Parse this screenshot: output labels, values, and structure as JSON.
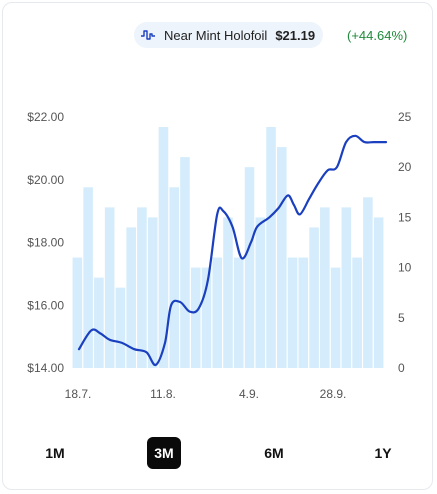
{
  "legend": {
    "series_name": "Near Mint Holofoil",
    "price": "$21.19",
    "change": "(+44.64%)",
    "icon": "line-chart-icon"
  },
  "ranges": [
    {
      "label": "1M",
      "active": false
    },
    {
      "label": "3M",
      "active": true
    },
    {
      "label": "6M",
      "active": false
    },
    {
      "label": "1Y",
      "active": false
    }
  ],
  "colors": {
    "line": "#1a3fbf",
    "bars": "#d4ecfb",
    "change_positive": "#1f8a3a"
  },
  "chart_data": {
    "type": "bar+line",
    "x_tick_labels": [
      "18.7.",
      "11.8.",
      "4.9.",
      "28.9."
    ],
    "y_left": {
      "ticks": [
        14,
        16,
        18,
        20,
        22
      ],
      "tick_labels": [
        "$14.00",
        "$16.00",
        "$18.00",
        "$20.00",
        "$22.00"
      ],
      "range": [
        14,
        22
      ]
    },
    "y_right": {
      "ticks": [
        0,
        5,
        10,
        15,
        20,
        25
      ],
      "tick_labels": [
        "0",
        "5",
        "10",
        "15",
        "20",
        "25"
      ],
      "range": [
        0,
        25
      ]
    },
    "bar_values": [
      11,
      18,
      9,
      16,
      8,
      14,
      16,
      15,
      24,
      18,
      21,
      10,
      10,
      11,
      15,
      11,
      20,
      15,
      24,
      22,
      11,
      11,
      14,
      16,
      10,
      16,
      11,
      17,
      15
    ],
    "line_points": [
      [
        0.0,
        14.6
      ],
      [
        0.04,
        15.2
      ],
      [
        0.07,
        15.1
      ],
      [
        0.1,
        14.9
      ],
      [
        0.14,
        14.8
      ],
      [
        0.18,
        14.6
      ],
      [
        0.22,
        14.5
      ],
      [
        0.25,
        14.1
      ],
      [
        0.28,
        14.8
      ],
      [
        0.3,
        16.0
      ],
      [
        0.33,
        16.1
      ],
      [
        0.36,
        15.8
      ],
      [
        0.39,
        15.9
      ],
      [
        0.42,
        16.8
      ],
      [
        0.45,
        18.9
      ],
      [
        0.47,
        19.0
      ],
      [
        0.5,
        18.5
      ],
      [
        0.53,
        17.5
      ],
      [
        0.56,
        18.0
      ],
      [
        0.58,
        18.5
      ],
      [
        0.62,
        18.8
      ],
      [
        0.65,
        19.1
      ],
      [
        0.68,
        19.5
      ],
      [
        0.7,
        19.2
      ],
      [
        0.72,
        18.9
      ],
      [
        0.75,
        19.4
      ],
      [
        0.78,
        19.9
      ],
      [
        0.81,
        20.3
      ],
      [
        0.84,
        20.4
      ],
      [
        0.87,
        21.2
      ],
      [
        0.9,
        21.4
      ],
      [
        0.93,
        21.2
      ],
      [
        0.96,
        21.2
      ],
      [
        1.0,
        21.2
      ]
    ]
  }
}
